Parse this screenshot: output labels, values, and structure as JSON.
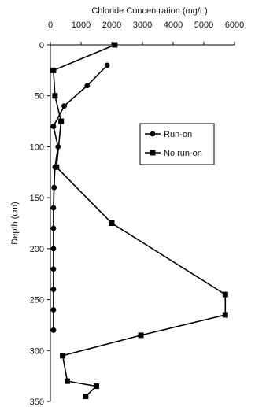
{
  "chart_data": {
    "type": "line",
    "title": "",
    "xlabel": "Chloride Concentration (mg/L)",
    "ylabel": "Depth (cm)",
    "xlim": [
      0,
      6000
    ],
    "ylim": [
      0,
      350
    ],
    "y_inverted": true,
    "x_axis_position": "top",
    "x_ticks": [
      0,
      1000,
      2000,
      3000,
      4000,
      5000,
      6000
    ],
    "y_ticks": [
      0,
      50,
      100,
      150,
      200,
      250,
      300,
      350
    ],
    "x_tick_labels": [
      "0",
      "1000",
      "2000",
      "3000",
      "4000",
      "5000",
      "6000"
    ],
    "y_tick_labels": [
      "0",
      "50",
      "100",
      "150",
      "200",
      "250",
      "300",
      "350"
    ],
    "grid": false,
    "legend_position": "right-middle",
    "series": [
      {
        "name": "Run-on",
        "marker": "circle",
        "x": [
          1850,
          1200,
          450,
          100,
          250,
          150,
          120,
          100,
          100,
          100,
          100,
          100,
          100,
          100,
          100
        ],
        "y": [
          20,
          40,
          60,
          80,
          100,
          120,
          140,
          160,
          180,
          200,
          220,
          240,
          260,
          280,
          280
        ]
      },
      {
        "name": "No run-on",
        "marker": "square",
        "x": [
          2100,
          100,
          150,
          350,
          200,
          2000,
          5700,
          5700,
          2950,
          400,
          550,
          1500,
          1150
        ],
        "y": [
          0,
          25,
          50,
          75,
          120,
          175,
          245,
          265,
          285,
          305,
          330,
          335,
          345
        ]
      }
    ]
  }
}
